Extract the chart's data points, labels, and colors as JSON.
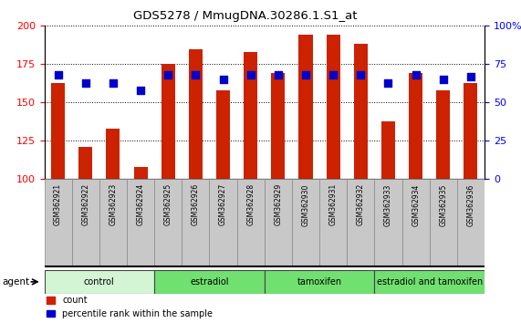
{
  "title": "GDS5278 / MmugDNA.30286.1.S1_at",
  "samples": [
    "GSM362921",
    "GSM362922",
    "GSM362923",
    "GSM362924",
    "GSM362925",
    "GSM362926",
    "GSM362927",
    "GSM362928",
    "GSM362929",
    "GSM362930",
    "GSM362931",
    "GSM362932",
    "GSM362933",
    "GSM362934",
    "GSM362935",
    "GSM362936"
  ],
  "counts": [
    163,
    121,
    133,
    108,
    175,
    185,
    158,
    183,
    169,
    194,
    194,
    188,
    138,
    169,
    158,
    163
  ],
  "percentile_ranks": [
    68,
    63,
    63,
    58,
    68,
    68,
    65,
    68,
    68,
    68,
    68,
    68,
    63,
    68,
    65,
    67
  ],
  "groups": [
    {
      "label": "control",
      "start": 0,
      "end": 4,
      "color": "#d4f5d4"
    },
    {
      "label": "estradiol",
      "start": 4,
      "end": 8,
      "color": "#70e070"
    },
    {
      "label": "tamoxifen",
      "start": 8,
      "end": 12,
      "color": "#70e070"
    },
    {
      "label": "estradiol and tamoxifen",
      "start": 12,
      "end": 16,
      "color": "#70e070"
    }
  ],
  "ylim_left": [
    100,
    200
  ],
  "ylim_right": [
    0,
    100
  ],
  "yticks_left": [
    100,
    125,
    150,
    175,
    200
  ],
  "yticks_right": [
    0,
    25,
    50,
    75,
    100
  ],
  "bar_color": "#cc2200",
  "dot_color": "#0000cc",
  "bar_width": 0.5,
  "dot_size": 40,
  "legend_count": "count",
  "legend_pct": "percentile rank within the sample",
  "agent_label": "agent",
  "ticklabel_bg": "#c8c8c8",
  "ticklabel_border": "#888888"
}
